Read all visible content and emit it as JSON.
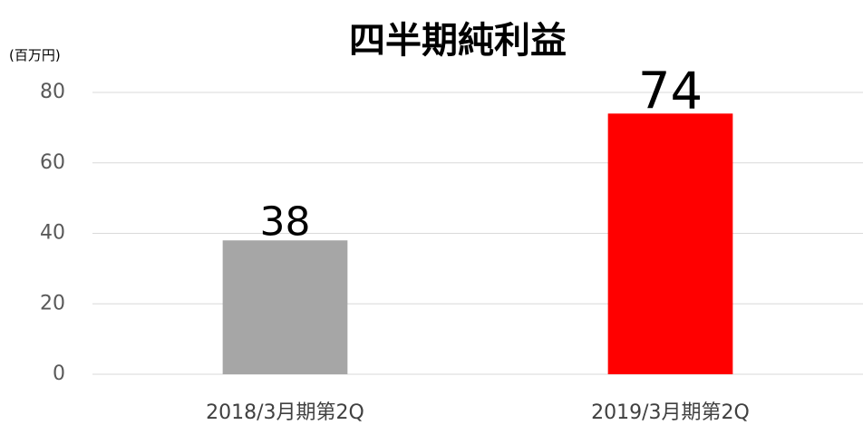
{
  "chart_data": {
    "type": "bar",
    "title": "四半期純利益",
    "y_axis_label": "(百万円)",
    "categories": [
      "2018/3月期第2Q",
      "2019/3月期第2Q"
    ],
    "values": [
      38,
      74
    ],
    "colors": [
      "#a6a6a6",
      "#ff0000"
    ],
    "ylim": [
      0,
      80
    ],
    "yticks": [
      0,
      20,
      40,
      60,
      80
    ],
    "grid": true
  }
}
